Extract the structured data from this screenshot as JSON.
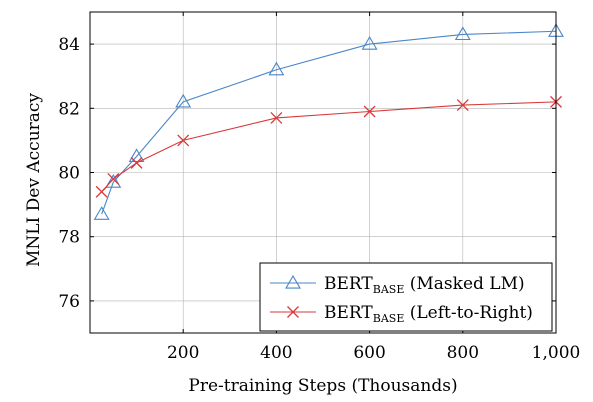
{
  "chart_data": {
    "type": "line",
    "xlabel": "Pre-training Steps (Thousands)",
    "ylabel": "MNLI Dev Accuracy",
    "xlim": [
      0,
      1000
    ],
    "ylim": [
      75,
      85
    ],
    "xticks": [
      200,
      400,
      600,
      800,
      1000
    ],
    "xtick_labels": [
      "200",
      "400",
      "600",
      "800",
      "1,000"
    ],
    "yticks": [
      76,
      78,
      80,
      82,
      84
    ],
    "ytick_labels": [
      "76",
      "78",
      "80",
      "82",
      "84"
    ],
    "grid": true,
    "legend_position": "bottom-right",
    "series": [
      {
        "name_main": "BERT",
        "name_sub": "BASE",
        "name_rest": " (Masked LM)",
        "marker": "triangle",
        "color": "#4a86c8",
        "x": [
          25,
          50,
          100,
          200,
          400,
          600,
          800,
          1000
        ],
        "y": [
          78.7,
          79.7,
          80.5,
          82.2,
          83.2,
          84.0,
          84.3,
          84.4
        ]
      },
      {
        "name_main": "BERT",
        "name_sub": "BASE",
        "name_rest": " (Left-to-Right)",
        "marker": "cross",
        "color": "#d93a3a",
        "x": [
          25,
          50,
          100,
          200,
          400,
          600,
          800,
          1000
        ],
        "y": [
          79.4,
          79.8,
          80.3,
          81.0,
          81.7,
          81.9,
          82.1,
          82.2
        ]
      }
    ]
  }
}
